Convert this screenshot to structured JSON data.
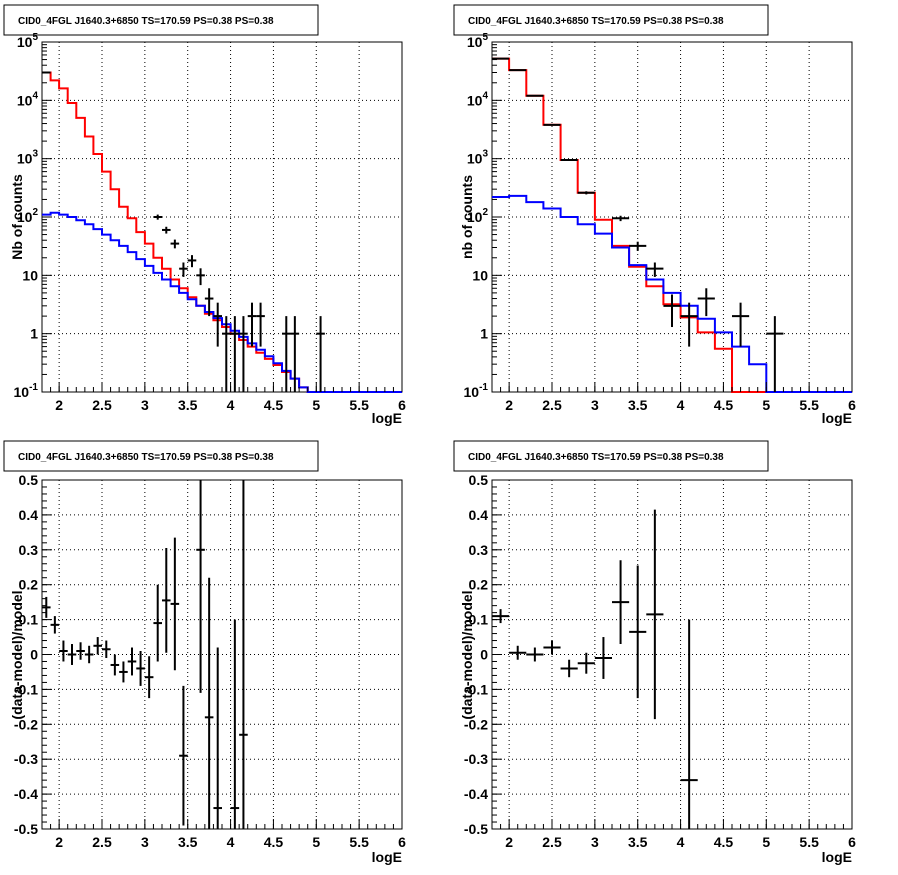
{
  "chart_data": [
    {
      "type": "line",
      "title": "CID0_4FGL J1640.3+6850 TS=170.59 PS=0.38 PS=0.38",
      "xlabel": "logE",
      "ylabel": "Nb of counts",
      "yscale": "log",
      "xlim": [
        1.8,
        6.0
      ],
      "ylim": [
        0.1,
        100000
      ],
      "grid": true,
      "x_ticks": [
        "2",
        "2.5",
        "3",
        "3.5",
        "4",
        "4.5",
        "5",
        "5.5",
        "6"
      ],
      "y_ticks": [
        "10^-1",
        "1",
        "10",
        "10^2",
        "10^3",
        "10^4",
        "10^5"
      ],
      "bin_width": 0.1,
      "series": [
        {
          "color": "#ff0000",
          "x": [
            1.8,
            1.9,
            2.0,
            2.1,
            2.2,
            2.3,
            2.4,
            2.5,
            2.6,
            2.7,
            2.8,
            2.9,
            3.0,
            3.1,
            3.2,
            3.3,
            3.4,
            3.5,
            3.6,
            3.7,
            3.8,
            3.9,
            4.0,
            4.1,
            4.2,
            4.3,
            4.4,
            4.5,
            4.6,
            4.7,
            4.8,
            4.9,
            5.0,
            5.1,
            5.2,
            5.3,
            5.4,
            5.5,
            5.6,
            5.7,
            5.8,
            5.9
          ],
          "y": [
            30000,
            22000,
            16000,
            9000,
            5000,
            2400,
            1200,
            600,
            300,
            150,
            95,
            55,
            35,
            20,
            13,
            8.5,
            6,
            4.2,
            3.0,
            2.2,
            1.7,
            1.3,
            1.0,
            0.78,
            0.6,
            0.47,
            0.37,
            0.29,
            0.22,
            0.17,
            0.12,
            0.1,
            0.1,
            0.1,
            0.1,
            0.1,
            0.1,
            0.1,
            0.1,
            0.1,
            0.1,
            0.1
          ]
        },
        {
          "color": "#0000ff",
          "x": [
            1.8,
            1.9,
            2.0,
            2.1,
            2.2,
            2.3,
            2.4,
            2.5,
            2.6,
            2.7,
            2.8,
            2.9,
            3.0,
            3.1,
            3.2,
            3.3,
            3.4,
            3.5,
            3.6,
            3.7,
            3.8,
            3.9,
            4.0,
            4.1,
            4.2,
            4.3,
            4.4,
            4.5,
            4.6,
            4.7,
            4.8,
            4.9,
            5.0,
            5.1,
            5.2,
            5.3,
            5.4,
            5.5,
            5.6,
            5.7,
            5.8,
            5.9
          ],
          "y": [
            110,
            118,
            110,
            100,
            88,
            75,
            62,
            50,
            40,
            32,
            25,
            19,
            14.5,
            11,
            8.5,
            6.5,
            5.0,
            3.9,
            3.0,
            2.35,
            1.85,
            1.45,
            1.12,
            0.88,
            0.68,
            0.53,
            0.41,
            0.31,
            0.23,
            0.17,
            0.12,
            0.1,
            0.1,
            0.1,
            0.1,
            0.1,
            0.1,
            0.1,
            0.1,
            0.1,
            0.1,
            0.1
          ]
        }
      ],
      "data_points": [
        {
          "x": 1.85,
          "y": 30000,
          "err": 180
        },
        {
          "x": 3.15,
          "y": 100,
          "err": 10
        },
        {
          "x": 3.25,
          "y": 60,
          "err": 8
        },
        {
          "x": 3.35,
          "y": 35,
          "err": 6
        },
        {
          "x": 3.45,
          "y": 13,
          "err": 3.6
        },
        {
          "x": 3.55,
          "y": 18,
          "err": 4.2
        },
        {
          "x": 3.65,
          "y": 10,
          "err": 3.2
        },
        {
          "x": 3.75,
          "y": 4,
          "err": 2.0
        },
        {
          "x": 3.85,
          "y": 2,
          "err": 1.4
        },
        {
          "x": 3.95,
          "y": 1,
          "err": 1.0
        },
        {
          "x": 4.05,
          "y": 1,
          "err": 1.0
        },
        {
          "x": 4.15,
          "y": 1,
          "err": 1.0
        },
        {
          "x": 4.25,
          "y": 2,
          "err": 1.4
        },
        {
          "x": 4.35,
          "y": 2,
          "err": 1.4
        },
        {
          "x": 4.65,
          "y": 1,
          "err": 1.0
        },
        {
          "x": 4.75,
          "y": 1,
          "err": 1.0
        },
        {
          "x": 5.05,
          "y": 1,
          "err": 1.0
        }
      ]
    },
    {
      "type": "line",
      "title": "CID0_4FGL J1640.3+6850 TS=170.59 PS=0.38 PS=0.38",
      "xlabel": "logE",
      "ylabel": "nb of counts",
      "yscale": "log",
      "xlim": [
        1.8,
        6.0
      ],
      "ylim": [
        0.1,
        100000
      ],
      "grid": true,
      "x_ticks": [
        "2",
        "2.5",
        "3",
        "3.5",
        "4",
        "4.5",
        "5",
        "5.5",
        "6"
      ],
      "y_ticks": [
        "10^-1",
        "1",
        "10",
        "10^2",
        "10^3",
        "10^4",
        "10^5"
      ],
      "bin_width": 0.2,
      "series": [
        {
          "color": "#ff0000",
          "x": [
            1.8,
            2.0,
            2.2,
            2.4,
            2.6,
            2.8,
            3.0,
            3.2,
            3.4,
            3.6,
            3.8,
            4.0,
            4.2,
            4.4,
            4.6,
            4.8,
            5.0,
            5.2,
            5.4,
            5.6,
            5.8
          ],
          "y": [
            52000,
            33000,
            12000,
            3800,
            950,
            260,
            90,
            32,
            14,
            6.5,
            3.2,
            1.9,
            1.05,
            0.55,
            0.1,
            0.1,
            0.1,
            0.1,
            0.1,
            0.1,
            0.1
          ]
        },
        {
          "color": "#0000ff",
          "x": [
            1.8,
            2.0,
            2.2,
            2.4,
            2.6,
            2.8,
            3.0,
            3.2,
            3.4,
            3.6,
            3.8,
            4.0,
            4.2,
            4.4,
            4.6,
            4.8,
            5.0,
            5.2,
            5.4,
            5.6,
            5.8
          ],
          "y": [
            220,
            230,
            180,
            140,
            100,
            75,
            52,
            30,
            15,
            8.5,
            5.0,
            3.0,
            1.8,
            1.05,
            0.6,
            0.3,
            0.1,
            0.1,
            0.1,
            0.1,
            0.1
          ]
        }
      ],
      "data_points": [
        {
          "x": 1.9,
          "y": 52000,
          "err": 230
        },
        {
          "x": 2.1,
          "y": 33000,
          "err": 180
        },
        {
          "x": 2.3,
          "y": 12000,
          "err": 110
        },
        {
          "x": 2.5,
          "y": 3800,
          "err": 62
        },
        {
          "x": 2.7,
          "y": 950,
          "err": 31
        },
        {
          "x": 2.9,
          "y": 260,
          "err": 16
        },
        {
          "x": 3.3,
          "y": 95,
          "err": 10
        },
        {
          "x": 3.5,
          "y": 32,
          "err": 5.7
        },
        {
          "x": 3.7,
          "y": 13,
          "err": 3.6
        },
        {
          "x": 3.9,
          "y": 3,
          "err": 1.7
        },
        {
          "x": 4.1,
          "y": 2,
          "err": 1.4
        },
        {
          "x": 4.3,
          "y": 4,
          "err": 2.0
        },
        {
          "x": 4.7,
          "y": 2,
          "err": 1.4
        },
        {
          "x": 5.1,
          "y": 1,
          "err": 1.0
        }
      ]
    },
    {
      "type": "scatter",
      "title": "CID0_4FGL J1640.3+6850 TS=170.59 PS=0.38 PS=0.38",
      "xlabel": "logE",
      "ylabel": "(data-model)/model",
      "xlim": [
        1.8,
        6.0
      ],
      "ylim": [
        -0.5,
        0.5
      ],
      "grid": true,
      "x_ticks": [
        "2",
        "2.5",
        "3",
        "3.5",
        "4",
        "4.5",
        "5",
        "5.5",
        "6"
      ],
      "y_ticks": [
        "-0.5",
        "-0.4",
        "-0.3",
        "-0.2",
        "-0.1",
        "0",
        "0.1",
        "0.2",
        "0.3",
        "0.4",
        "0.5"
      ],
      "xerr": 0.05,
      "points": [
        {
          "x": 1.85,
          "y": 0.135,
          "err": 0.03
        },
        {
          "x": 1.95,
          "y": 0.085,
          "err": 0.025
        },
        {
          "x": 2.05,
          "y": 0.01,
          "err": 0.03
        },
        {
          "x": 2.15,
          "y": 0.0,
          "err": 0.03
        },
        {
          "x": 2.25,
          "y": 0.01,
          "err": 0.025
        },
        {
          "x": 2.35,
          "y": 0.0,
          "err": 0.025
        },
        {
          "x": 2.45,
          "y": 0.025,
          "err": 0.025
        },
        {
          "x": 2.55,
          "y": 0.015,
          "err": 0.025
        },
        {
          "x": 2.65,
          "y": -0.03,
          "err": 0.03
        },
        {
          "x": 2.75,
          "y": -0.05,
          "err": 0.03
        },
        {
          "x": 2.85,
          "y": -0.02,
          "err": 0.04
        },
        {
          "x": 2.95,
          "y": -0.04,
          "err": 0.05
        },
        {
          "x": 3.05,
          "y": -0.065,
          "err": 0.06
        },
        {
          "x": 3.15,
          "y": 0.09,
          "err": 0.11
        },
        {
          "x": 3.25,
          "y": 0.155,
          "err": 0.15
        },
        {
          "x": 3.35,
          "y": 0.145,
          "err": 0.19
        },
        {
          "x": 3.45,
          "y": -0.29,
          "err": 0.2
        },
        {
          "x": 3.65,
          "y": 0.3,
          "err": 0.41
        },
        {
          "x": 3.75,
          "y": -0.18,
          "err": 0.4
        },
        {
          "x": 3.85,
          "y": -0.44,
          "err": 0.46
        },
        {
          "x": 4.05,
          "y": -0.44,
          "err": 0.54
        },
        {
          "x": 4.15,
          "y": -0.23,
          "err": 0.8
        }
      ]
    },
    {
      "type": "scatter",
      "title": "CID0_4FGL J1640.3+6850 TS=170.59 PS=0.38 PS=0.38",
      "xlabel": "logE",
      "ylabel": "(data-model)/model",
      "xlim": [
        1.8,
        6.0
      ],
      "ylim": [
        -0.5,
        0.5
      ],
      "grid": true,
      "x_ticks": [
        "2",
        "2.5",
        "3",
        "3.5",
        "4",
        "4.5",
        "5",
        "5.5",
        "6"
      ],
      "y_ticks": [
        "-0.5",
        "-0.4",
        "-0.3",
        "-0.2",
        "-0.1",
        "0",
        "0.1",
        "0.2",
        "0.3",
        "0.4",
        "0.5"
      ],
      "xerr": 0.1,
      "points": [
        {
          "x": 1.9,
          "y": 0.11,
          "err": 0.02
        },
        {
          "x": 2.1,
          "y": 0.005,
          "err": 0.02
        },
        {
          "x": 2.3,
          "y": 0.0,
          "err": 0.02
        },
        {
          "x": 2.5,
          "y": 0.02,
          "err": 0.02
        },
        {
          "x": 2.7,
          "y": -0.04,
          "err": 0.025
        },
        {
          "x": 2.9,
          "y": -0.025,
          "err": 0.03
        },
        {
          "x": 3.1,
          "y": -0.01,
          "err": 0.06
        },
        {
          "x": 3.3,
          "y": 0.15,
          "err": 0.12
        },
        {
          "x": 3.5,
          "y": 0.065,
          "err": 0.19
        },
        {
          "x": 3.7,
          "y": 0.115,
          "err": 0.3
        },
        {
          "x": 4.1,
          "y": -0.36,
          "err": 0.46
        }
      ]
    }
  ]
}
